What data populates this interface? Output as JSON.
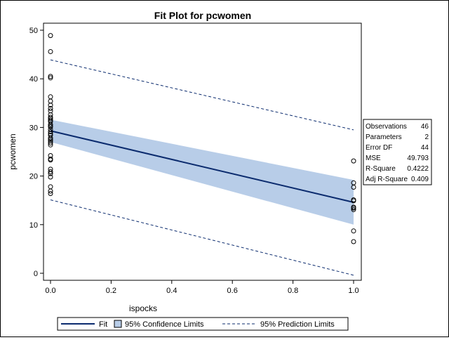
{
  "chart_data": {
    "type": "scatter",
    "title": "Fit Plot for pcwomen",
    "xlabel": "ispocks",
    "ylabel": "pcwomen",
    "xlim": [
      0,
      1
    ],
    "ylim": [
      0,
      50
    ],
    "x_ticks": [
      "0.0",
      "0.2",
      "0.4",
      "0.6",
      "0.8",
      "1.0"
    ],
    "y_ticks": [
      "0",
      "10",
      "20",
      "30",
      "40",
      "50"
    ],
    "grid": false,
    "points": [
      {
        "x": 0,
        "y": 48.9
      },
      {
        "x": 0,
        "y": 45.6
      },
      {
        "x": 0,
        "y": 40.5
      },
      {
        "x": 0,
        "y": 40.2
      },
      {
        "x": 0,
        "y": 36.3
      },
      {
        "x": 0,
        "y": 35.4
      },
      {
        "x": 0,
        "y": 34.6
      },
      {
        "x": 0,
        "y": 33.9
      },
      {
        "x": 0,
        "y": 33.4
      },
      {
        "x": 0,
        "y": 32.6
      },
      {
        "x": 0,
        "y": 32.1
      },
      {
        "x": 0,
        "y": 31.8
      },
      {
        "x": 0,
        "y": 31.2
      },
      {
        "x": 0,
        "y": 30.6
      },
      {
        "x": 0,
        "y": 30.1
      },
      {
        "x": 0,
        "y": 29.6
      },
      {
        "x": 0,
        "y": 29.1
      },
      {
        "x": 0,
        "y": 28.7
      },
      {
        "x": 0,
        "y": 27.8
      },
      {
        "x": 0,
        "y": 27.2
      },
      {
        "x": 0,
        "y": 26.8
      },
      {
        "x": 0,
        "y": 26.4
      },
      {
        "x": 0,
        "y": 24.2
      },
      {
        "x": 0,
        "y": 23.5
      },
      {
        "x": 0,
        "y": 23.3
      },
      {
        "x": 0,
        "y": 21.4
      },
      {
        "x": 0,
        "y": 20.9
      },
      {
        "x": 0,
        "y": 20.5
      },
      {
        "x": 0,
        "y": 19.8
      },
      {
        "x": 0,
        "y": 17.8
      },
      {
        "x": 0,
        "y": 16.9
      },
      {
        "x": 0,
        "y": 16.4
      },
      {
        "x": 0,
        "y": 27.5
      },
      {
        "x": 0,
        "y": 31.5
      },
      {
        "x": 0,
        "y": 30.3
      },
      {
        "x": 0,
        "y": 28.4
      },
      {
        "x": 1,
        "y": 23.1
      },
      {
        "x": 1,
        "y": 18.6
      },
      {
        "x": 1,
        "y": 17.7
      },
      {
        "x": 1,
        "y": 15.1
      },
      {
        "x": 1,
        "y": 14.9
      },
      {
        "x": 1,
        "y": 13.4
      },
      {
        "x": 1,
        "y": 13.1
      },
      {
        "x": 1,
        "y": 8.7
      },
      {
        "x": 1,
        "y": 6.5
      },
      {
        "x": 1,
        "y": 13.6
      }
    ],
    "fit": {
      "x0": 0,
      "y0": 29.3,
      "x1": 1,
      "y1": 14.6
    },
    "confidence_band": {
      "lower": [
        27.0,
        10.0
      ],
      "upper": [
        31.6,
        19.2
      ]
    },
    "prediction_band": {
      "lower": [
        15.1,
        -0.4
      ],
      "upper": [
        43.9,
        29.5
      ]
    },
    "colors": {
      "fit": "#0b2b6e",
      "confidence": "#b8cde8",
      "prediction": "#0b2b6e"
    },
    "legend": {
      "placement": "bottom",
      "items": [
        {
          "label": "Fit",
          "kind": "line"
        },
        {
          "label": "95% Confidence Limits",
          "kind": "band"
        },
        {
          "label": "95% Prediction Limits",
          "kind": "dashed"
        }
      ]
    },
    "stats": [
      {
        "label": "Observations",
        "value": "46"
      },
      {
        "label": "Parameters",
        "value": "2"
      },
      {
        "label": "Error DF",
        "value": "44"
      },
      {
        "label": "MSE",
        "value": "49.793"
      },
      {
        "label": "R-Square",
        "value": "0.4222"
      },
      {
        "label": "Adj R-Square",
        "value": "0.409"
      }
    ]
  }
}
